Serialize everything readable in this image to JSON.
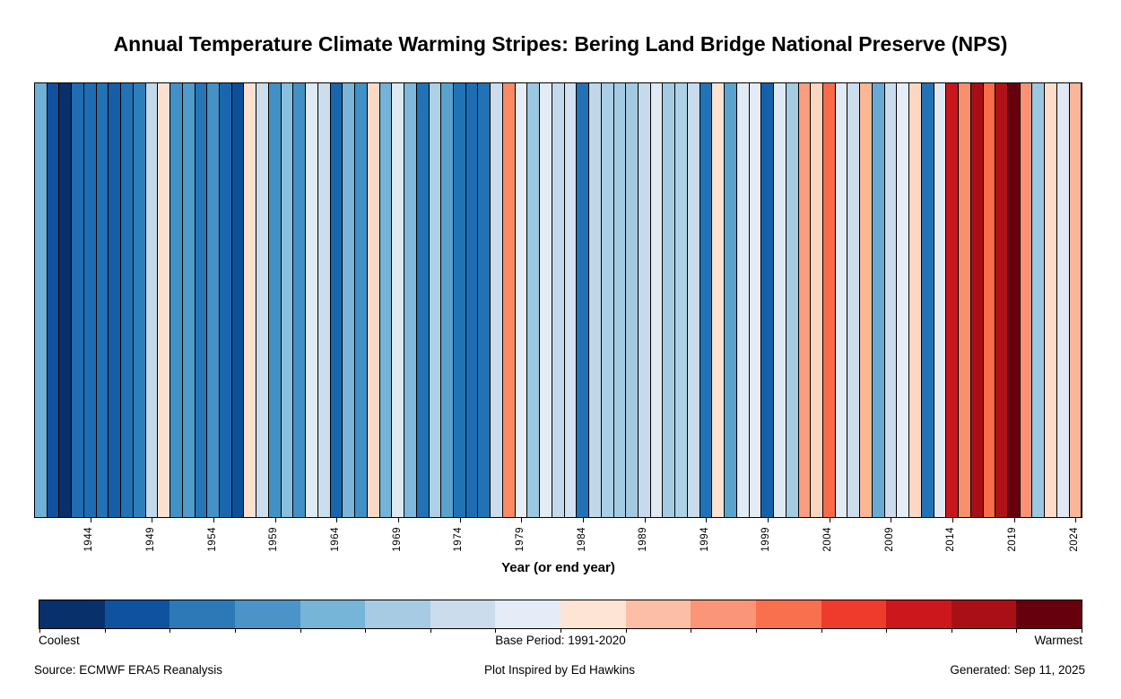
{
  "title": "Annual Temperature Climate Warming Stripes: Bering Land Bridge National Preserve (NPS)",
  "chart_data": {
    "type": "heatmap",
    "subtype": "warming-stripes",
    "title": "Annual Temperature Climate Warming Stripes: Bering Land Bridge National Preserve (NPS)",
    "xlabel": "Year (or end year)",
    "year_start": 1940,
    "year_end": 2024,
    "x_ticks": [
      1944,
      1949,
      1954,
      1959,
      1964,
      1969,
      1974,
      1979,
      1984,
      1989,
      1994,
      1999,
      2004,
      2009,
      2014,
      2019,
      2024
    ],
    "stripe_colors": [
      "#6fb0d7",
      "#10519f",
      "#08306b",
      "#1f6cb3",
      "#1f6cb3",
      "#2272b6",
      "#155fa8",
      "#2272b6",
      "#2e7ebb",
      "#c2d9ec",
      "#fce0cf",
      "#4191c6",
      "#4f9bcb",
      "#2575b7",
      "#4691c6",
      "#1965ae",
      "#0d4f99",
      "#fce1d0",
      "#ccdded",
      "#4191c6",
      "#88bede",
      "#4191c6",
      "#e0eaf4",
      "#ccdded",
      "#1965ae",
      "#79b5d9",
      "#4191c6",
      "#fcd9c4",
      "#74b2d8",
      "#dde8f3",
      "#7eb8da",
      "#2272b6",
      "#aed0e6",
      "#5aa2ce",
      "#2272b6",
      "#1e6db3",
      "#2272b6",
      "#ccdcee",
      "#fb8a65",
      "#e7eef7",
      "#9cc7e1",
      "#e3ecf6",
      "#c3d8eb",
      "#d2e1f0",
      "#2272b6",
      "#c0d7ea",
      "#aacee5",
      "#a5cbe3",
      "#a3c9e2",
      "#c5daec",
      "#dfe9f4",
      "#a5cbe3",
      "#aed1e7",
      "#c9dced",
      "#2272b6",
      "#fce2d1",
      "#5ba3cf",
      "#e2ebf5",
      "#e3ecf6",
      "#1561a9",
      "#dfe9f3",
      "#a3cbe2",
      "#fb9e7d",
      "#fcd5bf",
      "#f96a48",
      "#e2eaf4",
      "#cbdced",
      "#fbb694",
      "#68aad3",
      "#cbdcee",
      "#e5edf6",
      "#fcd8c4",
      "#2272b6",
      "#dfe8f3",
      "#c7171d",
      "#fa8e6d",
      "#a50f15",
      "#f96c4a",
      "#ae1117",
      "#67000d",
      "#fa9273",
      "#9bc7e0",
      "#fcdccb",
      "#dfe8f3",
      "#fbb599"
    ],
    "legend_position": "bottom",
    "grid": false
  },
  "colorbar": {
    "colors": [
      "#08306b",
      "#0f529f",
      "#2d79b8",
      "#4a94c7",
      "#76b4d8",
      "#a6cbe3",
      "#cbdced",
      "#e3ecf7",
      "#fde5d6",
      "#fcbfa5",
      "#fb9577",
      "#f9704f",
      "#ee3b2c",
      "#cc181d",
      "#a91016",
      "#67000d"
    ],
    "label_left": "Coolest",
    "label_center": "Base Period: 1991-2020",
    "label_right": "Warmest"
  },
  "footer": {
    "source": "Source: ECMWF ERA5 Reanalysis",
    "credit": "Plot Inspired by Ed Hawkins",
    "generated": "Generated: Sep 11, 2025"
  }
}
